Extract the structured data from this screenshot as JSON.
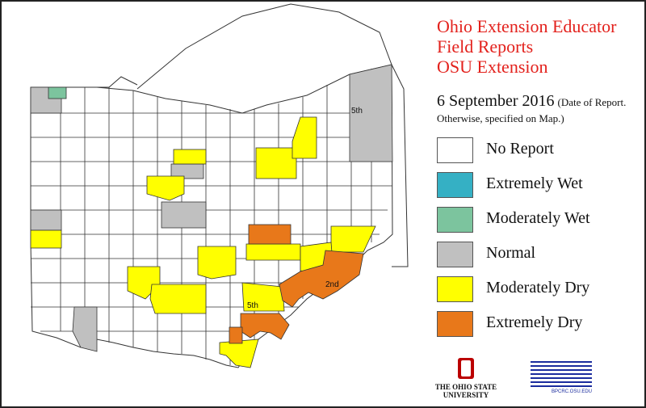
{
  "title_lines": [
    "Ohio Extension Educator",
    "Field Reports",
    "OSU Extension"
  ],
  "report_date": "6 September 2016",
  "date_note_1": "(Date of Report.",
  "date_note_2": "Otherwise, specified on Map.)",
  "colors": {
    "title_red": "#e3211c",
    "no_report": "#ffffff",
    "extremely_wet": "#35b0c4",
    "moderately_wet": "#7cc49e",
    "normal": "#c0c0c0",
    "moderately_dry": "#ffff00",
    "extremely_dry": "#e8781a"
  },
  "legend": [
    {
      "label": "No Report",
      "color": "#ffffff"
    },
    {
      "label": "Extremely Wet",
      "color": "#35b0c4"
    },
    {
      "label": "Moderately Wet",
      "color": "#7cc49e"
    },
    {
      "label": "Normal",
      "color": "#c0c0c0"
    },
    {
      "label": "Moderately Dry",
      "color": "#ffff00"
    },
    {
      "label": "Extremely Dry",
      "color": "#e8781a"
    }
  ],
  "district_labels": [
    "5th",
    "2nd",
    "5th"
  ],
  "logos": {
    "osu_line1": "THE OHIO STATE",
    "osu_line2": "UNIVERSITY",
    "bpc_url": "BPCRC.OSU.EDU"
  }
}
